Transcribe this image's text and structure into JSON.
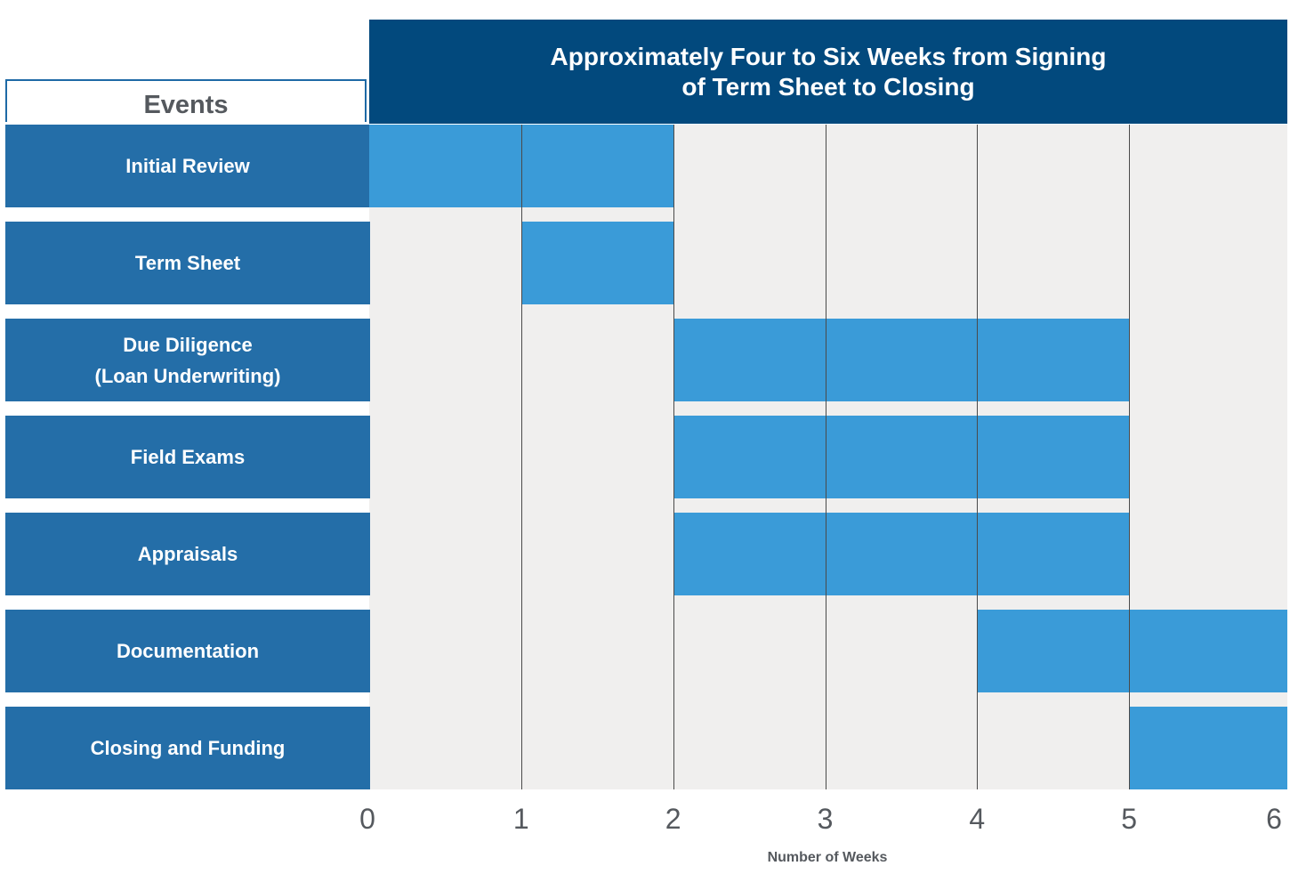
{
  "chart_data": {
    "type": "gantt",
    "title_line1": "Approximately Four to Six Weeks from Signing",
    "title_line2": "of Term Sheet to Closing",
    "category_header": "Events",
    "xlabel": "Number of Weeks",
    "x_ticks": [
      "0",
      "1",
      "2",
      "3",
      "4",
      "5",
      "6"
    ],
    "xlim": [
      0,
      6
    ],
    "colors": {
      "header": "#02497d",
      "label": "#246ea8",
      "bar": "#3a9bd8",
      "background": "#f0efee"
    },
    "tasks": [
      {
        "name": "Initial Review",
        "lines": [
          "Initial Review"
        ],
        "start": 0,
        "end": 2
      },
      {
        "name": "Term Sheet",
        "lines": [
          "Term Sheet"
        ],
        "start": 1,
        "end": 2
      },
      {
        "name": "Due Diligence (Loan Underwriting)",
        "lines": [
          "Due Diligence",
          "(Loan Underwriting)"
        ],
        "start": 2,
        "end": 5
      },
      {
        "name": "Field Exams",
        "lines": [
          "Field Exams"
        ],
        "start": 2,
        "end": 5
      },
      {
        "name": "Appraisals",
        "lines": [
          "Appraisals"
        ],
        "start": 2,
        "end": 5
      },
      {
        "name": "Documentation",
        "lines": [
          "Documentation"
        ],
        "start": 4,
        "end": 6
      },
      {
        "name": "Closing and Funding",
        "lines": [
          "Closing and Funding"
        ],
        "start": 5,
        "end": 6
      }
    ]
  }
}
